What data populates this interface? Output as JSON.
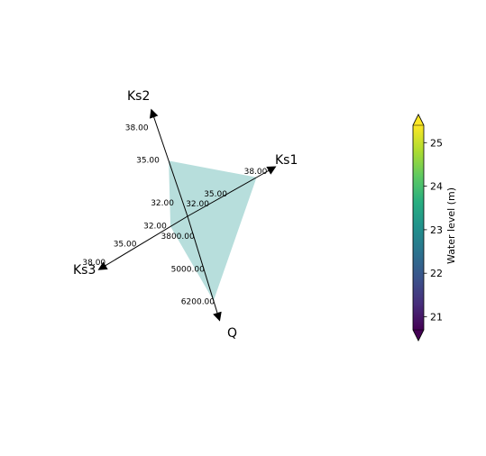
{
  "chart_data": {
    "type": "radar",
    "polygon_color": "#b7dedc",
    "axes": [
      {
        "name": "Ks1",
        "ticks": [
          "32.00",
          "35.00",
          "38.00"
        ],
        "value": 38.0
      },
      {
        "name": "Ks2",
        "ticks": [
          "32.00",
          "35.00",
          "38.00"
        ],
        "value": 35.0
      },
      {
        "name": "Ks3",
        "ticks": [
          "32.00",
          "35.00",
          "38.00"
        ],
        "value": 32.0
      },
      {
        "name": "Q",
        "ticks": [
          "3800.00",
          "5000.00",
          "6200.00"
        ],
        "value": 6200.0
      }
    ],
    "colorbar": {
      "label": "Water level (m)",
      "ticks": [
        "21",
        "22",
        "23",
        "24",
        "25"
      ],
      "range": [
        20.7,
        25.4
      ],
      "colormap": "viridis",
      "extend": "both"
    }
  }
}
